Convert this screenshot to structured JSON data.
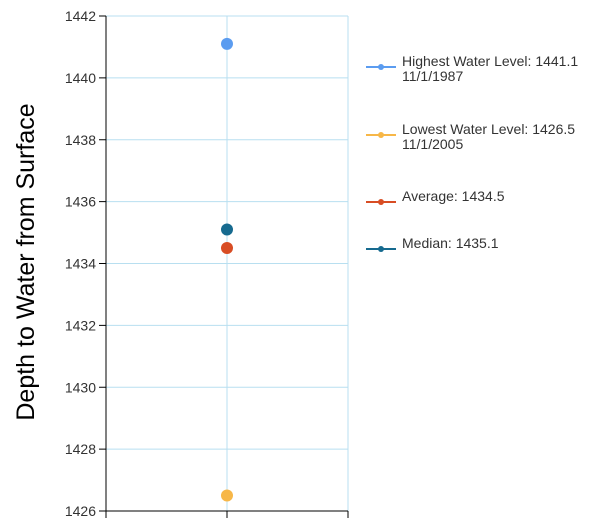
{
  "chart_data": {
    "type": "scatter",
    "ylabel": "Depth to Water from Surface",
    "ylim": [
      1426,
      1442
    ],
    "ytick_step": 2,
    "grid": true,
    "legend_position": "right",
    "series": [
      {
        "name": "Highest Water Level: 1441.1",
        "subtitle": "11/1/1987",
        "value": 1441.1,
        "color": "#5b9cf0"
      },
      {
        "name": "Lowest Water Level: 1426.5",
        "subtitle": "11/1/2005",
        "value": 1426.5,
        "color": "#f7b748"
      },
      {
        "name": "Average: 1434.5",
        "value": 1434.5,
        "color": "#d84d24"
      },
      {
        "name": "Median: 1435.1",
        "value": 1435.1,
        "color": "#166a8f"
      }
    ]
  }
}
